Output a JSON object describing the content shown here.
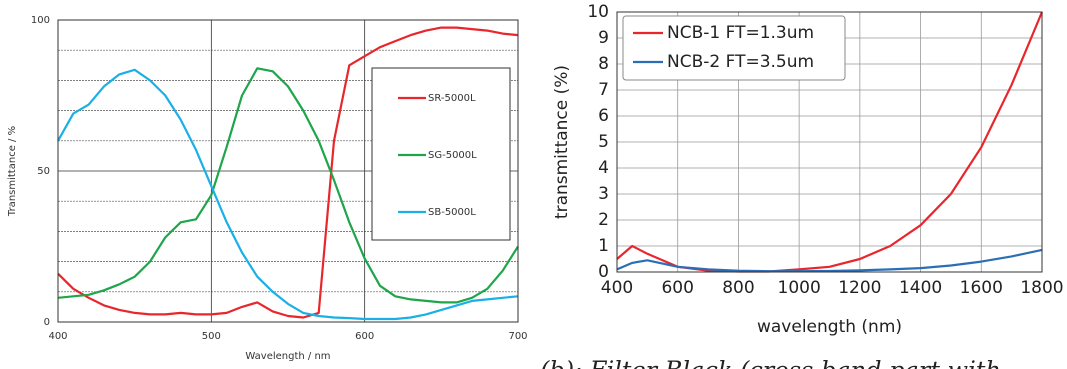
{
  "chart_data": [
    {
      "type": "line",
      "y_label": "Transmittance / %",
      "x_label": "Wavelength / nm",
      "xlim": [
        400,
        700
      ],
      "xticks": [
        400,
        500,
        600,
        700
      ],
      "ylim": [
        0,
        100
      ],
      "yticks": [
        0,
        50,
        100
      ],
      "grid": true,
      "legend": "right",
      "x": [
        400,
        410,
        420,
        430,
        440,
        450,
        460,
        470,
        480,
        490,
        500,
        510,
        520,
        530,
        540,
        550,
        560,
        570,
        580,
        590,
        600,
        610,
        620,
        630,
        640,
        650,
        660,
        670,
        680,
        690,
        700
      ],
      "series": [
        {
          "name": "SR-5000L",
          "color": "#e8262b",
          "values": [
            16,
            11,
            8,
            5.5,
            4,
            3,
            2.5,
            2.5,
            3,
            2.5,
            2.5,
            3,
            5,
            6.5,
            3.5,
            2,
            1.5,
            3,
            60,
            85,
            88,
            91,
            93,
            95,
            96.5,
            97.5,
            97.5,
            97,
            96.5,
            95.5,
            95
          ]
        },
        {
          "name": "SG-5000L",
          "color": "#1fa54a",
          "values": [
            8,
            8.5,
            9,
            10.5,
            12.5,
            15,
            20,
            28,
            33,
            34,
            42,
            58,
            75,
            84,
            83,
            78,
            70,
            60,
            47,
            33,
            21,
            12,
            8.5,
            7.5,
            7,
            6.5,
            6.5,
            8,
            11,
            17,
            25
          ]
        },
        {
          "name": "SB-5000L",
          "color": "#1ab0e6",
          "values": [
            60,
            69,
            72,
            78,
            82,
            83.5,
            80,
            75,
            67,
            57,
            45,
            33,
            23,
            15,
            10,
            6,
            3,
            2,
            1.5,
            1.3,
            1,
            1,
            1,
            1.5,
            2.5,
            4,
            5.5,
            7,
            7.5,
            8,
            8.5
          ]
        }
      ]
    },
    {
      "type": "line",
      "y_label": "transmittance (%)",
      "x_label": "wavelength (nm)",
      "xlim": [
        400,
        1800
      ],
      "xticks": [
        400,
        600,
        800,
        1000,
        1200,
        1400,
        1600,
        1800
      ],
      "ylim": [
        0,
        10
      ],
      "yticks": [
        0,
        1,
        2,
        3,
        4,
        5,
        6,
        7,
        8,
        9,
        10
      ],
      "grid": true,
      "legend": "upper left",
      "caption": "(b): Filter Black (cross band part with",
      "x": [
        400,
        450,
        500,
        600,
        700,
        800,
        900,
        1000,
        1100,
        1200,
        1300,
        1400,
        1500,
        1600,
        1700,
        1800
      ],
      "series": [
        {
          "name": "NCB-1 FT=1.3um",
          "color": "#e8262b",
          "values": [
            0.5,
            1.0,
            0.7,
            0.2,
            0.05,
            0.02,
            0.02,
            0.1,
            0.2,
            0.5,
            1.0,
            1.8,
            3.0,
            4.8,
            7.2,
            10
          ]
        },
        {
          "name": "NCB-2 FT=3.5um",
          "color": "#2a6fb5",
          "values": [
            0.1,
            0.35,
            0.45,
            0.2,
            0.1,
            0.05,
            0.03,
            0.03,
            0.04,
            0.06,
            0.1,
            0.15,
            0.25,
            0.4,
            0.6,
            0.85
          ]
        }
      ]
    }
  ]
}
